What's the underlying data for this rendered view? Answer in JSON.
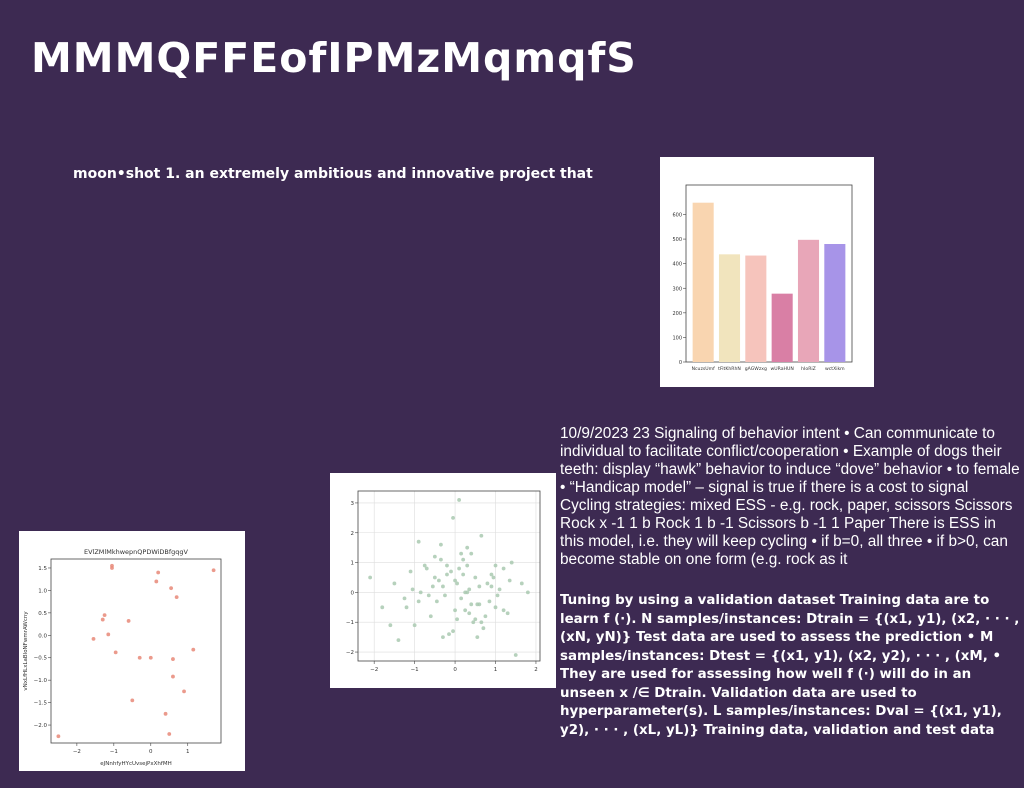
{
  "slide": {
    "title": "MMMQFFEofIPMzMqmqfS",
    "subtitle": "moon•shot 1. an extremely ambitious and innovative project that",
    "background": "#3d2a52",
    "body_text": "10/9/2023 23 Signaling of behavior intent • Can communicate to individual to facilitate conflict/cooperation • Example of dogs their teeth: display “hawk” behavior to induce “dove” behavior • to female • “Handicap model” – signal is true if there is a cost to signal Cycling strategies: mixed ESS - e.g. rock, paper, scissors Scissors Rock x -1 1 b Rock 1 b -1 Scissors b -1 1 Paper There is ESS in this model, i.e. they will keep cycling • if b=0, all three • if b>0, can become stable on one form (e.g. rock as it",
    "bold_text": "Tuning by using a validation dataset Training data are to learn f (·). N samples/instances: Dtrain = {(x1, y1), (x2, · · · , (xN, yN)} Test data are used to assess the prediction • M samples/instances: Dtest = {(x1, y1), (x2, y2), · · · , (xM, • They are used for assessing how well f (·) will do in an unseen x /∈ Dtrain. Validation data are used to hyperparameter(s). L samples/instances: Dval = {(x1, y1), y2), · · · , (xL, yL)} Training data, validation and test data"
  },
  "chart_data": [
    {
      "type": "bar",
      "title": "",
      "xlabel": "",
      "ylabel": "",
      "categories": [
        "NcuzsUmf",
        "tFitKhRhN",
        "gAGWzxg",
        "wURaHUN",
        "hIoRiZ",
        "wctXikm"
      ],
      "values": [
        648,
        438,
        433,
        278,
        497,
        480
      ],
      "colors": [
        "#f9d5b0",
        "#f1e4bd",
        "#f6c4bc",
        "#d97fa5",
        "#e8a6b8",
        "#a794e8"
      ],
      "ylim": [
        0,
        720
      ],
      "yticks": [
        0,
        100,
        200,
        300,
        400,
        500,
        600
      ],
      "yticks_labels": [
        "0",
        "100",
        "200",
        "300",
        "400",
        "500",
        "600"
      ],
      "grid": false
    },
    {
      "type": "scatter",
      "title": "",
      "xlabel": "",
      "ylabel": "",
      "color": "#a9c9b0",
      "xlim": [
        -2.4,
        2.1
      ],
      "ylim": [
        -2.3,
        3.4
      ],
      "xticks": [
        -2,
        -1,
        0,
        1,
        2
      ],
      "xticks_labels": [
        "−2",
        "−1",
        "0",
        "1",
        "2"
      ],
      "yticks": [
        -2,
        -1,
        0,
        1,
        2,
        3
      ],
      "yticks_labels": [
        "−2",
        "−1",
        "0",
        "1",
        "2",
        "3"
      ],
      "grid": true,
      "x": [
        0.1,
        -0.05,
        0.65,
        -0.35,
        0.3,
        0.4,
        -0.9,
        -2.1,
        0.2,
        1.4,
        -0.5,
        1.0,
        1.2,
        -1.1,
        0.9,
        1.8,
        -0.2,
        -0.7,
        0.5,
        -1.5,
        0.0,
        0.8,
        -0.3,
        0.35,
        -0.85,
        1.05,
        0.15,
        -0.45,
        0.6,
        -1.2,
        0.25,
        1.3,
        -0.6,
        0.05,
        0.45,
        -1.0,
        0.7,
        -0.15,
        0.55,
        -1.4,
        1.5,
        0.95,
        -0.25,
        0.3,
        -0.55,
        0.85,
        -1.8,
        0.2,
        -0.4,
        1.1,
        0.0,
        -0.75,
        0.4,
        1.65,
        -0.1,
        0.6,
        -1.25,
        0.75,
        -0.35,
        0.1,
        1.0,
        -0.65,
        0.5,
        -0.05,
        0.25,
        1.35,
        -0.9,
        0.15,
        -1.6,
        0.9,
        0.35,
        -0.2,
        0.65,
        -1.05,
        0.05,
        0.55,
        -0.5,
        1.2,
        0.3,
        -0.3
      ],
      "y": [
        3.1,
        2.5,
        1.9,
        1.6,
        1.5,
        1.3,
        1.7,
        0.5,
        1.1,
        1.0,
        1.2,
        0.9,
        0.8,
        0.7,
        0.6,
        0.0,
        0.9,
        0.8,
        0.5,
        0.3,
        0.4,
        0.3,
        0.2,
        0.1,
        0.0,
        -0.1,
        -0.2,
        -0.3,
        -0.4,
        -0.5,
        -0.6,
        -0.7,
        -0.8,
        -0.9,
        -1.0,
        -1.1,
        -1.2,
        -1.4,
        -1.5,
        -1.6,
        -2.1,
        0.5,
        -0.1,
        0.0,
        0.2,
        -0.3,
        -0.5,
        0.6,
        0.4,
        0.1,
        -0.6,
        0.9,
        -0.4,
        0.3,
        0.7,
        0.2,
        -0.2,
        -0.8,
        1.1,
        0.8,
        -0.5,
        -0.1,
        -0.9,
        -1.3,
        0.0,
        0.4,
        -0.3,
        1.3,
        -1.1,
        0.2,
        -0.7,
        0.6,
        -1.0,
        0.1,
        0.3,
        -0.4,
        0.5,
        -0.6,
        0.9,
        -1.5
      ],
      "size": 3
    },
    {
      "type": "scatter",
      "title": "EVlZMlMkhwepnQPDWiDBfgqgV",
      "xlabel": "eJNnhfyHYcUvsejPxXhfMH",
      "ylabel": "vNxLfHLxLaBloNFwmrAWcny",
      "color": "#e88878",
      "xlim": [
        -2.7,
        1.9
      ],
      "ylim": [
        -2.4,
        1.7
      ],
      "xticks": [
        -2,
        -1,
        0,
        1
      ],
      "xticks_labels": [
        "−2",
        "−1",
        "0",
        "1"
      ],
      "yticks": [
        -2.0,
        -1.5,
        -1.0,
        -0.5,
        0.0,
        0.5,
        1.0,
        1.5
      ],
      "yticks_labels": [
        "−2.0",
        "−1.5",
        "−1.0",
        "−0.5",
        "0.0",
        "0.5",
        "1.0",
        "1.5"
      ],
      "grid": false,
      "x": [
        -1.05,
        -1.05,
        0.2,
        0.55,
        1.7,
        0.15,
        0.7,
        -1.3,
        -1.25,
        -0.6,
        -1.15,
        -1.55,
        -0.95,
        -0.3,
        0.0,
        1.15,
        0.6,
        0.6,
        0.9,
        -0.5,
        0.4,
        0.5,
        -2.5
      ],
      "y": [
        1.55,
        1.5,
        1.4,
        1.05,
        1.45,
        1.2,
        0.85,
        0.35,
        0.45,
        0.32,
        0.02,
        -0.08,
        -0.38,
        -0.5,
        -0.5,
        -0.32,
        -0.53,
        -0.92,
        -1.25,
        -1.45,
        -1.75,
        -2.2,
        -2.25
      ],
      "size": 3
    }
  ]
}
